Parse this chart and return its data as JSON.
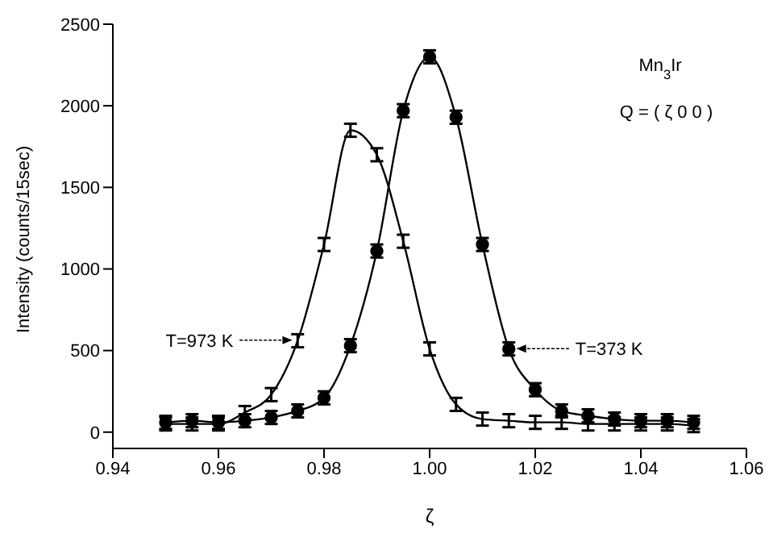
{
  "chart_data": {
    "type": "line",
    "xlabel": "ζ",
    "ylabel": "Intensity (counts/15sec)",
    "x": [
      0.95,
      0.955,
      0.96,
      0.965,
      0.97,
      0.975,
      0.98,
      0.985,
      0.99,
      0.995,
      1.0,
      1.005,
      1.01,
      1.015,
      1.02,
      1.025,
      1.03,
      1.035,
      1.04,
      1.045,
      1.05
    ],
    "series": [
      {
        "color": "#000000",
        "marker": "circle",
        "values": [
          60,
          70,
          60,
          70,
          90,
          130,
          210,
          530,
          1110,
          1970,
          2300,
          1930,
          1150,
          510,
          260,
          130,
          100,
          80,
          70,
          70,
          60
        ],
        "errors": [
          40,
          40,
          40,
          40,
          40,
          40,
          40,
          40,
          40,
          40,
          40,
          40,
          40,
          40,
          40,
          40,
          40,
          40,
          40,
          40,
          40
        ]
      },
      {
        "color": "#000000",
        "marker": "none",
        "values": [
          50,
          50,
          50,
          120,
          230,
          560,
          1150,
          1850,
          1700,
          1170,
          510,
          170,
          80,
          70,
          60,
          60,
          50,
          50,
          50,
          50,
          40
        ],
        "errors": [
          40,
          40,
          40,
          40,
          40,
          40,
          40,
          40,
          40,
          40,
          40,
          40,
          40,
          40,
          40,
          40,
          40,
          40,
          40,
          40,
          40
        ]
      }
    ],
    "xlim": [
      0.94,
      1.06
    ],
    "xticks": [
      {
        "value": 0.94,
        "label": "0.94"
      },
      {
        "value": 0.96,
        "label": "0.96"
      },
      {
        "value": 0.98,
        "label": "0.98"
      },
      {
        "value": 1.0,
        "label": "1.00"
      },
      {
        "value": 1.02,
        "label": "1.02"
      },
      {
        "value": 1.04,
        "label": "1.04"
      },
      {
        "value": 1.06,
        "label": "1.06"
      }
    ],
    "ylim": [
      -100,
      2500
    ],
    "yticks": [
      0,
      500,
      1000,
      1500,
      2000,
      2500
    ],
    "grid": false,
    "legend": false,
    "annotations": [
      "Mn$_{3}$Ir",
      "Q = ( ζ  0  0 )",
      "T=973 K",
      "T=373 K"
    ]
  }
}
